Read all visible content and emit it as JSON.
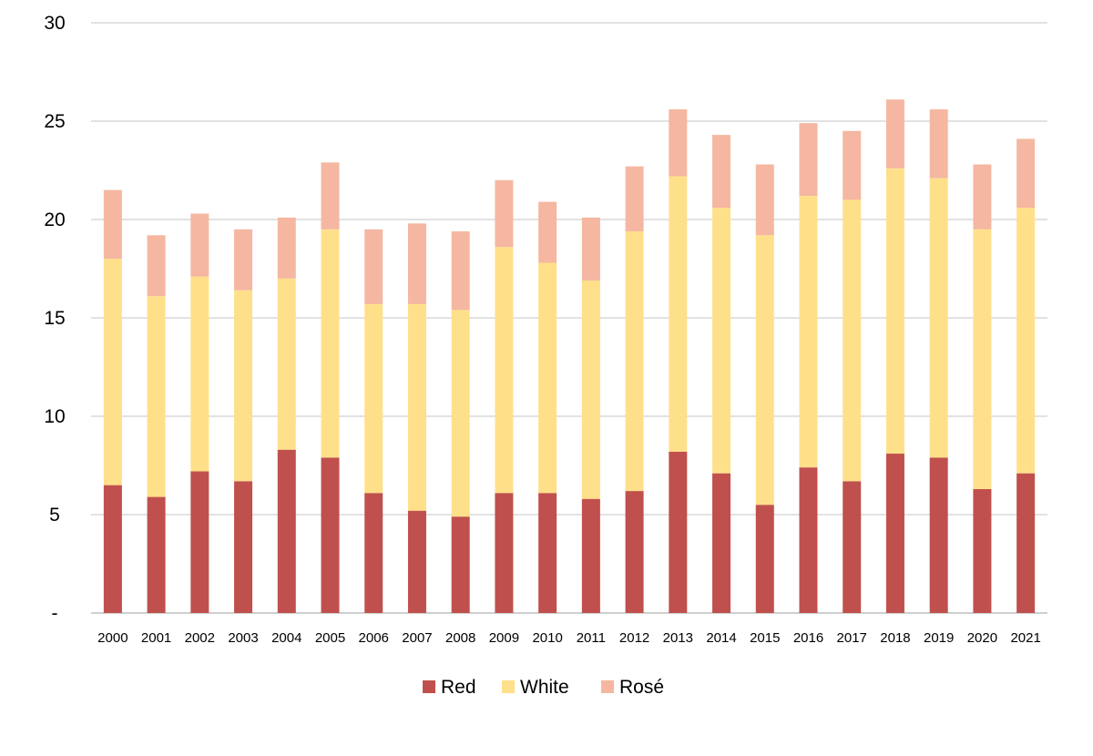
{
  "chart_data": {
    "type": "bar",
    "stacked": true,
    "categories": [
      "2000",
      "2001",
      "2002",
      "2003",
      "2004",
      "2005",
      "2006",
      "2007",
      "2008",
      "2009",
      "2010",
      "2011",
      "2012",
      "2013",
      "2014",
      "2015",
      "2016",
      "2017",
      "2018",
      "2019",
      "2020",
      "2021"
    ],
    "series": [
      {
        "name": "Red",
        "color": "#C0504D",
        "values": [
          6.5,
          5.9,
          7.2,
          6.7,
          8.3,
          7.9,
          6.1,
          5.2,
          4.9,
          6.1,
          6.1,
          5.8,
          6.2,
          8.2,
          7.1,
          5.5,
          7.4,
          6.7,
          8.1,
          7.9,
          6.3,
          7.1
        ]
      },
      {
        "name": "White",
        "color": "#FFE08A",
        "values": [
          11.5,
          10.2,
          9.9,
          9.7,
          8.7,
          11.6,
          9.6,
          10.5,
          10.5,
          12.5,
          11.7,
          11.1,
          13.2,
          14.0,
          13.5,
          13.7,
          13.8,
          14.3,
          14.5,
          14.2,
          13.2,
          13.5
        ]
      },
      {
        "name": "Rosé",
        "color": "#F5B7A1",
        "values": [
          3.5,
          3.1,
          3.2,
          3.1,
          3.1,
          3.4,
          3.8,
          4.1,
          4.0,
          3.4,
          3.1,
          3.2,
          3.3,
          3.4,
          3.7,
          3.6,
          3.7,
          3.5,
          3.5,
          3.5,
          3.3,
          3.5
        ]
      }
    ],
    "ylim": [
      0,
      30
    ],
    "yticks": [
      0,
      5,
      10,
      15,
      20,
      25,
      30
    ],
    "ytick_labels": [
      "-",
      "5",
      "10",
      "15",
      "20",
      "25",
      "30"
    ],
    "grid": true,
    "legend_position": "bottom-center"
  }
}
